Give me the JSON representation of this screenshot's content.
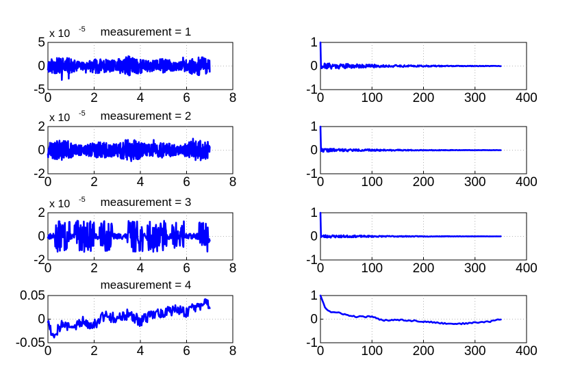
{
  "figure": {
    "series_color": "#0000ff",
    "grid": true
  },
  "chart_data": [
    {
      "type": "line",
      "id": "m1-signal",
      "title": "measurement = 1",
      "xlabel": "",
      "ylabel": "",
      "multiplier_base": "x 10",
      "multiplier_exp": "-5",
      "xlim": [
        0,
        8
      ],
      "ylim": [
        -5,
        5
      ],
      "xticks": [
        0,
        2,
        4,
        6,
        8
      ],
      "xtick_labels": [
        "0",
        "2",
        "4",
        "6",
        "8"
      ],
      "yticks": [
        -5,
        0,
        5
      ],
      "ytick_labels": [
        "-5",
        "0",
        "5"
      ],
      "series": [
        {
          "x_start": 0,
          "x_end": 7.0,
          "n": 700,
          "amplitude": 1.0,
          "seed": 11,
          "kind": "noise"
        }
      ]
    },
    {
      "type": "line",
      "id": "m1-autocorr",
      "title": "",
      "xlabel": "",
      "ylabel": "",
      "xlim": [
        0,
        400
      ],
      "ylim": [
        -1,
        1
      ],
      "xticks": [
        0,
        100,
        200,
        300,
        400
      ],
      "xtick_labels": [
        "0",
        "100",
        "200",
        "300",
        "400"
      ],
      "yticks": [
        -1,
        0,
        1
      ],
      "ytick_labels": [
        "-1",
        "0",
        "1"
      ],
      "series": [
        {
          "x_start": 0,
          "x_end": 350,
          "n": 351,
          "seed": 21,
          "kind": "acf",
          "decay": 0.15
        }
      ]
    },
    {
      "type": "line",
      "id": "m2-signal",
      "title": "measurement = 2",
      "xlabel": "",
      "ylabel": "",
      "multiplier_base": "x 10",
      "multiplier_exp": "-5",
      "xlim": [
        0,
        8
      ],
      "ylim": [
        -2,
        2
      ],
      "xticks": [
        0,
        2,
        4,
        6,
        8
      ],
      "xtick_labels": [
        "0",
        "2",
        "4",
        "6",
        "8"
      ],
      "yticks": [
        -2,
        0,
        2
      ],
      "ytick_labels": [
        "-2",
        "0",
        "2"
      ],
      "series": [
        {
          "x_start": 0,
          "x_end": 7.0,
          "n": 700,
          "amplitude": 0.45,
          "seed": 12,
          "kind": "noise"
        }
      ]
    },
    {
      "type": "line",
      "id": "m2-autocorr",
      "title": "",
      "xlabel": "",
      "ylabel": "",
      "xlim": [
        0,
        400
      ],
      "ylim": [
        -1,
        1
      ],
      "xticks": [
        0,
        100,
        200,
        300,
        400
      ],
      "xtick_labels": [
        "0",
        "100",
        "200",
        "300",
        "400"
      ],
      "yticks": [
        -1,
        0,
        1
      ],
      "ytick_labels": [
        "-1",
        "0",
        "1"
      ],
      "series": [
        {
          "x_start": 0,
          "x_end": 350,
          "n": 351,
          "seed": 22,
          "kind": "acf",
          "decay": 0.08
        }
      ]
    },
    {
      "type": "line",
      "id": "m3-signal",
      "title": "measurement = 3",
      "xlabel": "",
      "ylabel": "",
      "multiplier_base": "x 10",
      "multiplier_exp": "-5",
      "xlim": [
        0,
        8
      ],
      "ylim": [
        -2,
        2
      ],
      "xticks": [
        0,
        2,
        4,
        6,
        8
      ],
      "xtick_labels": [
        "0",
        "2",
        "4",
        "6",
        "8"
      ],
      "yticks": [
        -2,
        0,
        2
      ],
      "ytick_labels": [
        "-2",
        "0",
        "2"
      ],
      "series": [
        {
          "x_start": 0,
          "x_end": 7.0,
          "n": 420,
          "amplitude": 1.1,
          "seed": 13,
          "kind": "bursty"
        }
      ]
    },
    {
      "type": "line",
      "id": "m3-autocorr",
      "title": "",
      "xlabel": "",
      "ylabel": "",
      "xlim": [
        0,
        400
      ],
      "ylim": [
        -1,
        1
      ],
      "xticks": [
        0,
        100,
        200,
        300,
        400
      ],
      "xtick_labels": [
        "0",
        "100",
        "200",
        "300",
        "400"
      ],
      "yticks": [
        -1,
        0,
        1
      ],
      "ytick_labels": [
        "-1",
        "0",
        "1"
      ],
      "series": [
        {
          "x_start": 0,
          "x_end": 350,
          "n": 351,
          "seed": 23,
          "kind": "acf",
          "decay": 0.07
        }
      ]
    },
    {
      "type": "line",
      "id": "m4-signal",
      "title": "measurement = 4",
      "xlabel": "",
      "ylabel": "",
      "xlim": [
        0,
        8
      ],
      "ylim": [
        -0.05,
        0.05
      ],
      "xticks": [
        0,
        2,
        4,
        6,
        8
      ],
      "xtick_labels": [
        "0",
        "2",
        "4",
        "6",
        "8"
      ],
      "yticks": [
        -0.05,
        0,
        0.05
      ],
      "ytick_labels": [
        "-0.05",
        "0",
        "0.05"
      ],
      "series": [
        {
          "x_start": 0,
          "x_end": 7.0,
          "n": 260,
          "seed": 14,
          "kind": "walk",
          "anchors": [
            [
              0,
              0.0
            ],
            [
              0.2,
              -0.035
            ],
            [
              0.6,
              -0.01
            ],
            [
              1.0,
              -0.02
            ],
            [
              1.5,
              -0.005
            ],
            [
              2.0,
              -0.01
            ],
            [
              2.5,
              0.01
            ],
            [
              3.0,
              0.0
            ],
            [
              3.5,
              0.01
            ],
            [
              4.0,
              -0.005
            ],
            [
              4.5,
              0.01
            ],
            [
              5.0,
              0.015
            ],
            [
              5.5,
              0.02
            ],
            [
              6.0,
              0.015
            ],
            [
              6.5,
              0.025
            ],
            [
              7.0,
              0.035
            ]
          ]
        }
      ]
    },
    {
      "type": "line",
      "id": "m4-autocorr",
      "title": "",
      "xlabel": "",
      "ylabel": "",
      "xlim": [
        0,
        400
      ],
      "ylim": [
        -1,
        1
      ],
      "xticks": [
        0,
        100,
        200,
        300,
        400
      ],
      "xtick_labels": [
        "0",
        "100",
        "200",
        "300",
        "400"
      ],
      "yticks": [
        -1,
        0,
        1
      ],
      "ytick_labels": [
        "-1",
        "0",
        "1"
      ],
      "series": [
        {
          "x_start": 0,
          "x_end": 350,
          "n": 120,
          "seed": 24,
          "kind": "smooth",
          "anchors": [
            [
              0,
              1.0
            ],
            [
              10,
              0.45
            ],
            [
              20,
              0.3
            ],
            [
              40,
              0.25
            ],
            [
              60,
              0.12
            ],
            [
              80,
              0.1
            ],
            [
              100,
              0.1
            ],
            [
              120,
              -0.05
            ],
            [
              150,
              -0.02
            ],
            [
              200,
              -0.1
            ],
            [
              240,
              -0.18
            ],
            [
              270,
              -0.2
            ],
            [
              300,
              -0.15
            ],
            [
              330,
              -0.1
            ],
            [
              350,
              0.0
            ]
          ]
        }
      ]
    }
  ]
}
